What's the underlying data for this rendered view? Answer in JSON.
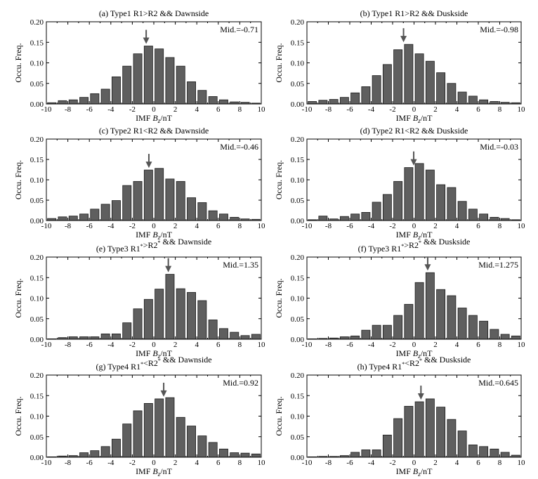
{
  "chart_data": [
    {
      "type": "bar",
      "title": "(a) Type1  R1>R2 && Dawnside",
      "xlabel": "IMF B_z/nT",
      "ylabel": "Occu. Freq.",
      "xlim": [
        -10,
        10
      ],
      "ylim": [
        0,
        0.2
      ],
      "xticks": [
        -10,
        -8,
        -6,
        -4,
        -2,
        0,
        2,
        4,
        6,
        8,
        10
      ],
      "yticks": [
        "0.00",
        "0.05",
        "0.10",
        "0.15",
        "0.20"
      ],
      "x": [
        -9.5,
        -8.5,
        -7.5,
        -6.5,
        -5.5,
        -4.5,
        -3.5,
        -2.5,
        -1.5,
        -0.5,
        0.5,
        1.5,
        2.5,
        3.5,
        4.5,
        5.5,
        6.5,
        7.5,
        8.5,
        9.5
      ],
      "values": [
        0.003,
        0.008,
        0.01,
        0.016,
        0.025,
        0.036,
        0.066,
        0.092,
        0.122,
        0.141,
        0.134,
        0.113,
        0.092,
        0.054,
        0.033,
        0.018,
        0.01,
        0.005,
        0.004,
        0.002
      ],
      "annotation": "Mid.=-0.71",
      "median": -0.71
    },
    {
      "type": "bar",
      "title": "(b) Type1  R1>R2 && Duskside",
      "xlabel": "IMF B_z/nT",
      "ylabel": "Occu. Freq.",
      "xlim": [
        -10,
        10
      ],
      "ylim": [
        0,
        0.2
      ],
      "xticks": [
        -10,
        -8,
        -6,
        -4,
        -2,
        0,
        2,
        4,
        6,
        8,
        10
      ],
      "yticks": [
        "0.00",
        "0.05",
        "0.10",
        "0.15",
        "0.20"
      ],
      "x": [
        -9.5,
        -8.5,
        -7.5,
        -6.5,
        -5.5,
        -4.5,
        -3.5,
        -2.5,
        -1.5,
        -0.5,
        0.5,
        1.5,
        2.5,
        3.5,
        4.5,
        5.5,
        6.5,
        7.5,
        8.5,
        9.5
      ],
      "values": [
        0.006,
        0.009,
        0.011,
        0.016,
        0.027,
        0.042,
        0.069,
        0.096,
        0.132,
        0.145,
        0.122,
        0.104,
        0.076,
        0.05,
        0.029,
        0.019,
        0.01,
        0.006,
        0.004,
        0.003
      ],
      "annotation": "Mid.=-0.98",
      "median": -0.98
    },
    {
      "type": "bar",
      "title": "(c) Type2  R1<R2 && Dawnside",
      "xlabel": "IMF B_z/nT",
      "ylabel": "Occu. Freq.",
      "xlim": [
        -10,
        10
      ],
      "ylim": [
        0,
        0.2
      ],
      "xticks": [
        -10,
        -8,
        -6,
        -4,
        -2,
        0,
        2,
        4,
        6,
        8,
        10
      ],
      "yticks": [
        "0.00",
        "0.05",
        "0.10",
        "0.15",
        "0.20"
      ],
      "x": [
        -9.5,
        -8.5,
        -7.5,
        -6.5,
        -5.5,
        -4.5,
        -3.5,
        -2.5,
        -1.5,
        -0.5,
        0.5,
        1.5,
        2.5,
        3.5,
        4.5,
        5.5,
        6.5,
        7.5,
        8.5,
        9.5
      ],
      "values": [
        0.005,
        0.009,
        0.011,
        0.016,
        0.028,
        0.04,
        0.049,
        0.086,
        0.096,
        0.124,
        0.128,
        0.102,
        0.096,
        0.056,
        0.044,
        0.024,
        0.016,
        0.008,
        0.004,
        0.003
      ],
      "annotation": "Mid.=-0.46",
      "median": -0.46
    },
    {
      "type": "bar",
      "title": "(d) Type2  R1<R2 && Duskside",
      "xlabel": "IMF B_z/nT",
      "ylabel": "Occu. Freq.",
      "xlim": [
        -10,
        10
      ],
      "ylim": [
        0,
        0.2
      ],
      "xticks": [
        -10,
        -8,
        -6,
        -4,
        -2,
        0,
        2,
        4,
        6,
        8,
        10
      ],
      "yticks": [
        "0.00",
        "0.05",
        "0.10",
        "0.15",
        "0.20"
      ],
      "x": [
        -9.5,
        -8.5,
        -7.5,
        -6.5,
        -5.5,
        -4.5,
        -3.5,
        -2.5,
        -1.5,
        -0.5,
        0.5,
        1.5,
        2.5,
        3.5,
        4.5,
        5.5,
        6.5,
        7.5,
        8.5,
        9.5
      ],
      "values": [
        0.002,
        0.011,
        0.004,
        0.01,
        0.016,
        0.02,
        0.045,
        0.064,
        0.096,
        0.13,
        0.14,
        0.124,
        0.088,
        0.081,
        0.047,
        0.028,
        0.016,
        0.008,
        0.005,
        0.002
      ],
      "annotation": "Mid.=-0.03",
      "median": -0.03
    },
    {
      "type": "bar",
      "title": "(e) Type3  R1*>R2* && Dawnside",
      "xlabel": "IMF B_z/nT",
      "ylabel": "Occu. Freq.",
      "xlim": [
        -10,
        10
      ],
      "ylim": [
        0,
        0.2
      ],
      "xticks": [
        -10,
        -8,
        -6,
        -4,
        -2,
        0,
        2,
        4,
        6,
        8,
        10
      ],
      "yticks": [
        "0.00",
        "0.05",
        "0.10",
        "0.15",
        "0.20"
      ],
      "x": [
        -9.5,
        -8.5,
        -7.5,
        -6.5,
        -5.5,
        -4.5,
        -3.5,
        -2.5,
        -1.5,
        -0.5,
        0.5,
        1.5,
        2.5,
        3.5,
        4.5,
        5.5,
        6.5,
        7.5,
        8.5,
        9.5
      ],
      "values": [
        0.0,
        0.004,
        0.006,
        0.006,
        0.006,
        0.013,
        0.013,
        0.04,
        0.074,
        0.097,
        0.122,
        0.158,
        0.123,
        0.114,
        0.094,
        0.047,
        0.026,
        0.017,
        0.009,
        0.012
      ],
      "annotation": "Mid.=1.35",
      "median": 1.35
    },
    {
      "type": "bar",
      "title": "(f) Type3  R1*>R2* && Duskside",
      "xlabel": "IMF B_z/nT",
      "ylabel": "Occu. Freq.",
      "xlim": [
        -10,
        10
      ],
      "ylim": [
        0,
        0.2
      ],
      "xticks": [
        -10,
        -8,
        -6,
        -4,
        -2,
        0,
        2,
        4,
        6,
        8,
        10
      ],
      "yticks": [
        "0.00",
        "0.05",
        "0.10",
        "0.15",
        "0.20"
      ],
      "x": [
        -9.5,
        -8.5,
        -7.5,
        -6.5,
        -5.5,
        -4.5,
        -3.5,
        -2.5,
        -1.5,
        -0.5,
        0.5,
        1.5,
        2.5,
        3.5,
        4.5,
        5.5,
        6.5,
        7.5,
        8.5,
        9.5
      ],
      "values": [
        0.0,
        0.002,
        0.003,
        0.006,
        0.008,
        0.022,
        0.034,
        0.034,
        0.058,
        0.085,
        0.138,
        0.162,
        0.121,
        0.106,
        0.076,
        0.058,
        0.044,
        0.024,
        0.012,
        0.008
      ],
      "annotation": "Mid.=1.275",
      "median": 1.275
    },
    {
      "type": "bar",
      "title": "(g) Type4  R1*<R2* && Dawnside",
      "xlabel": "IMF B_z/nT",
      "ylabel": "Occu. Freq.",
      "xlim": [
        -10,
        10
      ],
      "ylim": [
        0,
        0.2
      ],
      "xticks": [
        -10,
        -8,
        -6,
        -4,
        -2,
        0,
        2,
        4,
        6,
        8,
        10
      ],
      "yticks": [
        "0.00",
        "0.05",
        "0.10",
        "0.15",
        "0.20"
      ],
      "x": [
        -9.5,
        -8.5,
        -7.5,
        -6.5,
        -5.5,
        -4.5,
        -3.5,
        -2.5,
        -1.5,
        -0.5,
        0.5,
        1.5,
        2.5,
        3.5,
        4.5,
        5.5,
        6.5,
        7.5,
        8.5,
        9.5
      ],
      "values": [
        0.0,
        0.003,
        0.004,
        0.011,
        0.016,
        0.026,
        0.044,
        0.081,
        0.113,
        0.131,
        0.142,
        0.145,
        0.097,
        0.076,
        0.052,
        0.036,
        0.02,
        0.011,
        0.01,
        0.008
      ],
      "annotation": "Mid.=0.92",
      "median": 0.92
    },
    {
      "type": "bar",
      "title": "(h) Type4  R1*<R2* && Duskside",
      "xlabel": "IMF B_z/nT",
      "ylabel": "Occu. Freq.",
      "xlim": [
        -10,
        10
      ],
      "ylim": [
        0,
        0.2
      ],
      "xticks": [
        -10,
        -8,
        -6,
        -4,
        -2,
        0,
        2,
        4,
        6,
        8,
        10
      ],
      "yticks": [
        "0.00",
        "0.05",
        "0.10",
        "0.15",
        "0.20"
      ],
      "x": [
        -9.5,
        -8.5,
        -7.5,
        -6.5,
        -5.5,
        -4.5,
        -3.5,
        -2.5,
        -1.5,
        -0.5,
        0.5,
        1.5,
        2.5,
        3.5,
        4.5,
        5.5,
        6.5,
        7.5,
        8.5,
        9.5
      ],
      "values": [
        0.0,
        0.002,
        0.002,
        0.004,
        0.012,
        0.018,
        0.018,
        0.054,
        0.094,
        0.124,
        0.135,
        0.142,
        0.122,
        0.092,
        0.064,
        0.03,
        0.026,
        0.02,
        0.012,
        0.005
      ],
      "annotation": "Mid.=0.645",
      "median": 0.645
    }
  ]
}
